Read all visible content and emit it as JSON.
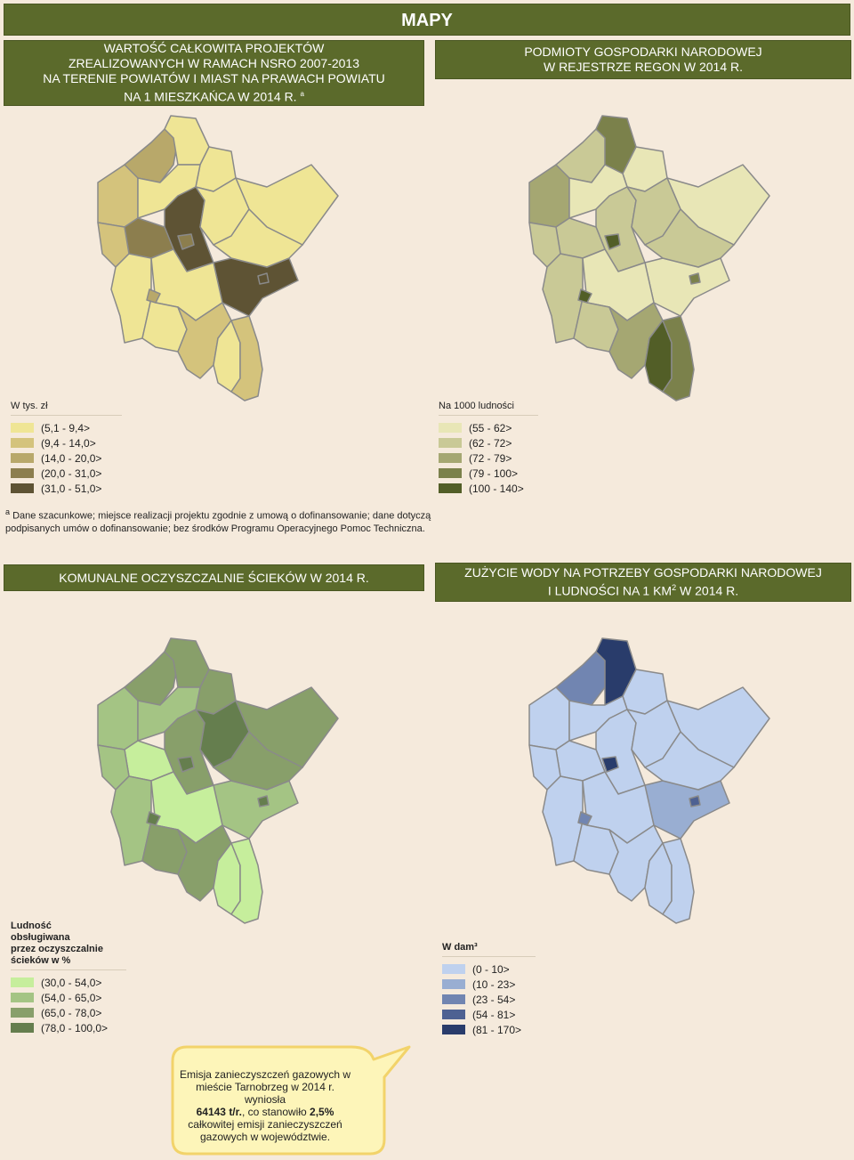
{
  "top_title": "MAPY",
  "headers": {
    "h1": [
      "WARTOŚĆ CAŁKOWITA PROJEKTÓW",
      "ZREALIZOWANYCH W RAMACH NSRO 2007-2013",
      "NA TERENIE POWIATÓW I MIAST NA PRAWACH POWIATU",
      "NA 1 MIESZKAŃCA W 2014 R."
    ],
    "h1_sup": "a",
    "h2": [
      "PODMIOTY GOSPODARKI NARODOWEJ",
      "W REJESTRZE REGON W 2014 R."
    ],
    "h3": [
      "KOMUNALNE OCZYSZCZALNIE ŚCIEKÓW W 2014 R."
    ],
    "h4_line1": "ZUŻYCIE WODY NA POTRZEBY GOSPODARKI NARODOWEJ",
    "h4_line2_a": "I LUDNOŚCI NA 1 KM",
    "h4_line2_sup": "2",
    "h4_line2_b": " W 2014 R."
  },
  "legends": {
    "map1": {
      "title": "W tys. zł",
      "items": [
        {
          "label": "(5,1 - 9,4>",
          "color": "#efe595"
        },
        {
          "label": "(9,4 - 14,0>",
          "color": "#d4c37c"
        },
        {
          "label": "(14,0 - 20,0>",
          "color": "#b8a86a"
        },
        {
          "label": "(20,0 - 31,0>",
          "color": "#8c7e4e"
        },
        {
          "label": "(31,0 - 51,0>",
          "color": "#5e5334"
        }
      ]
    },
    "map2": {
      "title": "Na 1000 ludności",
      "items": [
        {
          "label": "(55 - 62>",
          "color": "#e8e6b6"
        },
        {
          "label": "(62 - 72>",
          "color": "#c9c996"
        },
        {
          "label": "(72 - 79>",
          "color": "#a5a772"
        },
        {
          "label": "(79 - 100>",
          "color": "#7b814b"
        },
        {
          "label": "(100 - 140>",
          "color": "#525e27"
        }
      ]
    },
    "map3": {
      "title_lines": [
        "Ludność",
        "obsługiwana",
        "przez oczyszczalnie",
        "ścieków w %"
      ],
      "items": [
        {
          "label": "(30,0 - 54,0>",
          "color": "#c6ee9c"
        },
        {
          "label": "(54,0 - 65,0>",
          "color": "#a4c484"
        },
        {
          "label": "(65,0 - 78,0>",
          "color": "#889f6a"
        },
        {
          "label": "(78,0 - 100,0>",
          "color": "#657e4e"
        }
      ]
    },
    "map4": {
      "title": "W dam³",
      "items": [
        {
          "label": "(0 - 10>",
          "color": "#bfd1ee"
        },
        {
          "label": "(10 - 23>",
          "color": "#99aed2"
        },
        {
          "label": "(23 - 54>",
          "color": "#7185b1"
        },
        {
          "label": "(54 - 81>",
          "color": "#4e6192"
        },
        {
          "label": "(81 - 170>",
          "color": "#293c6b"
        }
      ]
    }
  },
  "footnote": {
    "sup": "a",
    "text": " Dane szacunkowe; miejsce realizacji projektu zgodnie z umową o dofinansowanie; dane dotyczą podpisanych umów o dofinansowanie; bez środków Programu Operacyjnego Pomoc Techniczna."
  },
  "callout": {
    "line1": "Emisja zanieczyszczeń gazowych w",
    "line2": "mieście Tarnobrzeg w 2014 r. wyniosła",
    "value": "64143 t/r.",
    "mid": ", co stanowiło ",
    "pct": "2,5%",
    "line4": "całkowitej emisji zanieczyszczeń",
    "line5": "gazowych w województwie."
  },
  "colors": {
    "header_bg": "#5b6a2b",
    "page_bg": "#f5eadc",
    "callout_bg": "#fdf5b9",
    "callout_border": "#f2d36a"
  }
}
